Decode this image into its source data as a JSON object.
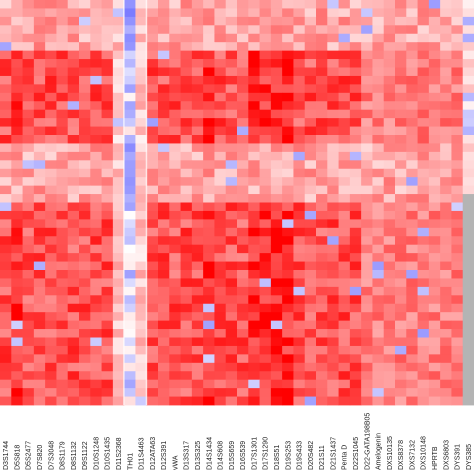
{
  "chart_data": {
    "type": "heatmap",
    "title": "",
    "xlabel": "",
    "ylabel": "",
    "colors": {
      "high": "#ff0000",
      "mid": "#ffffff",
      "low": "#6b6bff",
      "missing": "#b4b4b4",
      "background": "#ffffff"
    },
    "value_range": [
      -1,
      1
    ],
    "x_labels": [
      "D3S1744",
      "D5S818",
      "D5S2477",
      "D7S820",
      "D7S3048",
      "D8S1179",
      "D8S1132",
      "D9S1122",
      "D10S1248",
      "D10S1435",
      "D11S2368",
      "TH01",
      "D11S4463",
      "D12ATA63",
      "D12S391",
      "vWA",
      "D13S317",
      "D13S325",
      "D14S1434",
      "D14S608",
      "D15S659",
      "D16S539",
      "D17S1301",
      "D17S1290",
      "D18S51",
      "D19S253",
      "D19S433",
      "D20S482",
      "D21S11",
      "D21S1437",
      "Penta D",
      "D22S1045",
      "D22-GATA198B05",
      "Amelogenin",
      "DXS10135",
      "DXS8378",
      "DXS7132",
      "DXS10148",
      "HPRTB",
      "DXS6803",
      "DYS391",
      "DYS385"
    ]
  }
}
